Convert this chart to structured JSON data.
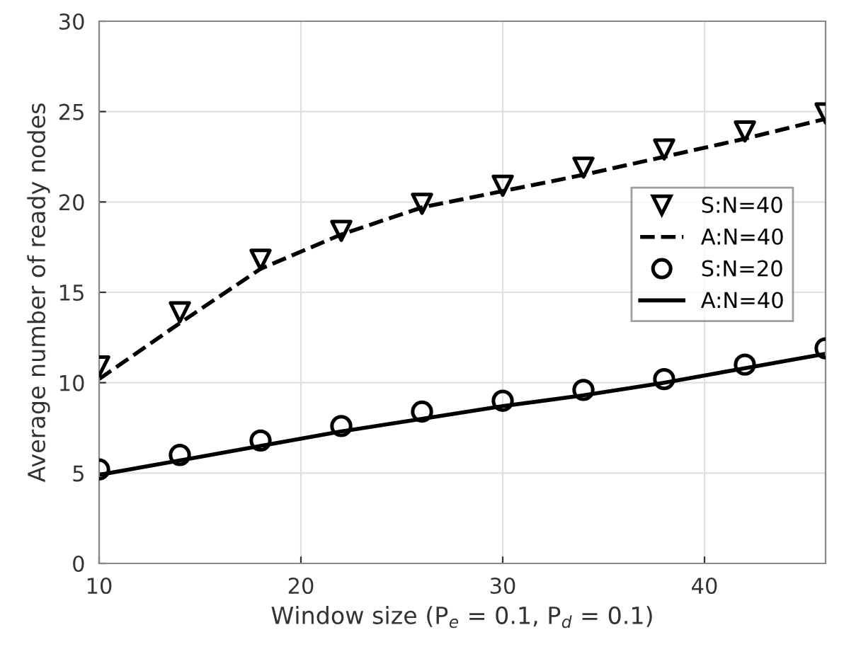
{
  "chart_data": {
    "type": "line",
    "xlabel": "Window size (P$_{e}$ = 0.1, P$_{d}$ = 0.1)",
    "ylabel": "Average number of ready nodes",
    "x": [
      10,
      14,
      18,
      22,
      26,
      30,
      34,
      38,
      42,
      46
    ],
    "series": [
      {
        "name": "S:N=40",
        "type": "scatter",
        "color": "#000000",
        "marker": "triangle",
        "values": [
          10.9,
          13.9,
          16.8,
          18.4,
          19.9,
          20.9,
          21.9,
          22.9,
          23.9,
          24.9
        ]
      },
      {
        "name": "A:N=40",
        "color": "#000000",
        "marker": "none",
        "line_style": "dashed",
        "values": [
          10.2,
          13.3,
          16.3,
          18.2,
          19.7,
          20.6,
          21.5,
          22.5,
          23.5,
          24.6
        ]
      },
      {
        "name": "S:N=20",
        "type": "scatter",
        "color": "#000000",
        "marker": "circle",
        "values": [
          5.2,
          6.0,
          6.8,
          7.6,
          8.4,
          9.0,
          9.6,
          10.2,
          11.0,
          11.9
        ]
      },
      {
        "name": "A:N=40",
        "color": "#000000",
        "marker": "none",
        "line_style": "solid",
        "values": [
          4.9,
          5.7,
          6.5,
          7.3,
          8.0,
          8.7,
          9.3,
          10.0,
          10.8,
          11.6
        ]
      }
    ],
    "xlim": [
      10,
      46
    ],
    "xticks": [
      10,
      20,
      30,
      40
    ],
    "ylim": [
      0,
      30
    ],
    "yticks": [
      0,
      5,
      10,
      15,
      20,
      25,
      30
    ],
    "grid": true,
    "legend": "right"
  }
}
